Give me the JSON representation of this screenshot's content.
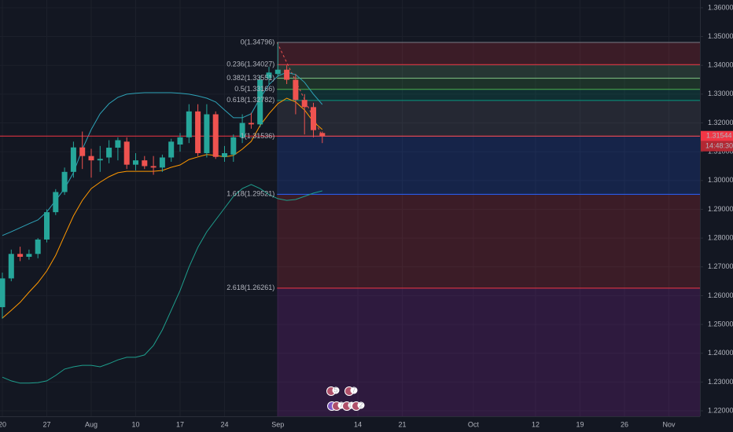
{
  "chart_data": {
    "type": "candlestick",
    "categories": [
      "20",
      null,
      null,
      null,
      null,
      "27",
      null,
      null,
      null,
      null,
      "Aug",
      null,
      null,
      null,
      null,
      "10",
      null,
      null,
      null,
      null,
      "17",
      null,
      null,
      null,
      null,
      "24",
      null,
      null,
      null,
      null,
      null,
      "Sep",
      null,
      null,
      null,
      null,
      null,
      null,
      null,
      null,
      "14",
      null,
      null,
      null,
      null,
      "21",
      null,
      null,
      null,
      null,
      null,
      null,
      null,
      "Oct",
      null,
      null,
      null,
      null,
      null,
      null,
      "12",
      null,
      null,
      null,
      null,
      "19",
      null,
      null,
      null,
      null,
      "26",
      null,
      null,
      null,
      null,
      "Nov"
    ],
    "open": [
      1.256,
      1.266,
      1.2745,
      1.2735,
      1.2745,
      1.2795,
      1.289,
      1.296,
      1.303,
      1.3115,
      1.3085,
      1.307,
      1.308,
      1.3114,
      1.3135,
      1.3055,
      1.307,
      1.305,
      1.3045,
      1.308,
      1.3125,
      1.315,
      1.324,
      1.3095,
      1.323,
      1.3082,
      1.309,
      1.315,
      1.32,
      1.3195,
      1.3355,
      1.337,
      1.3385,
      1.335,
      1.328,
      1.3255,
      1.3165,
      null,
      null,
      null,
      null,
      null,
      null,
      null,
      null,
      null,
      null,
      null,
      null,
      null,
      null,
      null,
      null,
      null,
      null,
      null,
      null,
      null,
      null,
      null,
      null,
      null,
      null,
      null,
      null,
      null,
      null,
      null,
      null,
      null,
      null,
      null,
      null,
      null,
      null,
      null
    ],
    "high": [
      1.268,
      1.276,
      1.277,
      1.276,
      1.28,
      1.29,
      1.297,
      1.3045,
      1.3135,
      1.317,
      1.311,
      1.312,
      1.314,
      1.315,
      1.315,
      1.3095,
      1.3085,
      1.3085,
      1.309,
      1.3145,
      1.3165,
      1.3265,
      1.3265,
      1.3265,
      1.324,
      1.312,
      1.316,
      1.323,
      1.3235,
      1.3365,
      1.3395,
      1.348,
      1.34,
      1.337,
      1.33,
      1.327,
      1.317,
      null,
      null,
      null,
      null,
      null,
      null,
      null,
      null,
      null,
      null,
      null,
      null,
      null,
      null,
      null,
      null,
      null,
      null,
      null,
      null,
      null,
      null,
      null,
      null,
      null,
      null,
      null,
      null,
      null,
      null,
      null,
      null,
      null,
      null,
      null,
      null,
      null,
      null,
      null
    ],
    "low": [
      1.252,
      1.265,
      1.272,
      1.2725,
      1.273,
      1.2785,
      1.288,
      1.295,
      1.301,
      1.304,
      1.301,
      1.303,
      1.306,
      1.307,
      1.304,
      1.3035,
      1.304,
      1.302,
      1.303,
      1.3065,
      1.31,
      1.313,
      1.3085,
      1.308,
      1.3075,
      1.3065,
      1.3065,
      1.313,
      1.318,
      1.3185,
      1.3335,
      1.336,
      1.3335,
      1.323,
      1.316,
      1.315,
      1.313,
      null,
      null,
      null,
      null,
      null,
      null,
      null,
      null,
      null,
      null,
      null,
      null,
      null,
      null,
      null,
      null,
      null,
      null,
      null,
      null,
      null,
      null,
      null,
      null,
      null,
      null,
      null,
      null,
      null,
      null,
      null,
      null,
      null,
      null,
      null,
      null,
      null,
      null,
      null
    ],
    "close": [
      1.266,
      1.2745,
      1.2735,
      1.2745,
      1.2795,
      1.289,
      1.296,
      1.303,
      1.3115,
      1.3085,
      1.307,
      1.3075,
      1.3114,
      1.314,
      1.3055,
      1.307,
      1.305,
      1.3045,
      1.308,
      1.3135,
      1.315,
      1.324,
      1.3095,
      1.323,
      1.3082,
      1.3095,
      1.315,
      1.32,
      1.3195,
      1.335,
      1.3375,
      1.3385,
      1.335,
      1.328,
      1.3255,
      1.3175,
      1.31544,
      null,
      null,
      null,
      null,
      null,
      null,
      null,
      null,
      null,
      null,
      null,
      null,
      null,
      null,
      null,
      null,
      null,
      null,
      null,
      null,
      null,
      null,
      null,
      null,
      null,
      null,
      null,
      null,
      null,
      null,
      null,
      null,
      null,
      null,
      null,
      null,
      null,
      null,
      null
    ],
    "up_color": "#26a69a",
    "down_color": "#ef5350",
    "series": [
      {
        "color": "#2ea3b8",
        "values": [
          1.2809,
          1.2822,
          1.2836,
          1.285,
          1.2863,
          1.2891,
          1.2931,
          1.2972,
          1.3027,
          1.3109,
          1.3177,
          1.3232,
          1.3267,
          1.3289,
          1.33,
          1.3303,
          1.3305,
          1.3305,
          1.3305,
          1.3305,
          1.3303,
          1.33,
          1.3294,
          1.3286,
          1.3273,
          1.3245,
          1.3218,
          1.3218,
          1.3232,
          1.3286,
          1.3333,
          1.3363,
          1.3376,
          1.3368,
          1.3341,
          1.33,
          1.3264,
          null,
          null,
          null,
          null,
          null,
          null,
          null,
          null,
          null,
          null,
          null,
          null,
          null,
          null,
          null,
          null,
          null,
          null,
          null,
          null,
          null,
          null,
          null,
          null,
          null,
          null,
          null,
          null,
          null,
          null,
          null,
          null,
          null,
          null,
          null,
          null,
          null,
          null,
          null
        ]
      },
      {
        "color": "#1e9e8c",
        "values": [
          1.2317,
          1.2304,
          1.2296,
          1.2296,
          1.2298,
          1.2304,
          1.2323,
          1.2345,
          1.2353,
          1.2358,
          1.2358,
          1.2353,
          1.2364,
          1.2377,
          1.2386,
          1.2386,
          1.2394,
          1.2427,
          1.2481,
          1.2549,
          1.2618,
          1.2699,
          1.2768,
          1.2822,
          1.2863,
          1.2904,
          1.2945,
          1.2972,
          1.2986,
          1.2972,
          1.2951,
          1.2937,
          1.2931,
          1.2934,
          1.2945,
          1.2956,
          1.2964,
          null,
          null,
          null,
          null,
          null,
          null,
          null,
          null,
          null,
          null,
          null,
          null,
          null,
          null,
          null,
          null,
          null,
          null,
          null,
          null,
          null,
          null,
          null,
          null,
          null,
          null,
          null,
          null,
          null,
          null,
          null,
          null,
          null,
          null,
          null,
          null,
          null,
          null,
          null
        ]
      },
      {
        "color": "#ff9800",
        "values": [
          1.2522,
          1.2549,
          1.2577,
          1.2612,
          1.2645,
          1.2686,
          1.274,
          1.2809,
          1.2877,
          1.2931,
          1.2972,
          1.2994,
          1.3013,
          1.3027,
          1.3032,
          1.3032,
          1.3032,
          1.3032,
          1.3035,
          1.3046,
          1.3054,
          1.3073,
          1.3082,
          1.309,
          1.3087,
          1.3082,
          1.3087,
          1.3109,
          1.3136,
          1.3191,
          1.3232,
          1.3267,
          1.3286,
          1.3273,
          1.3245,
          1.3204,
          1.3177,
          null,
          null,
          null,
          null,
          null,
          null,
          null,
          null,
          null,
          null,
          null,
          null,
          null,
          null,
          null,
          null,
          null,
          null,
          null,
          null,
          null,
          null,
          null,
          null,
          null,
          null,
          null,
          null,
          null,
          null,
          null,
          null,
          null,
          null,
          null,
          null,
          null,
          null,
          null
        ]
      }
    ],
    "ylim": [
      1.2181,
      1.3627
    ],
    "yticks": [
      {
        "value": 1.22,
        "label": "1.22000"
      },
      {
        "value": 1.23,
        "label": "1.23000"
      },
      {
        "value": 1.24,
        "label": "1.24000"
      },
      {
        "value": 1.25,
        "label": "1.25000"
      },
      {
        "value": 1.26,
        "label": "1.26000"
      },
      {
        "value": 1.27,
        "label": "1.27000"
      },
      {
        "value": 1.28,
        "label": "1.28000"
      },
      {
        "value": 1.29,
        "label": "1.29000"
      },
      {
        "value": 1.3,
        "label": "1.30000"
      },
      {
        "value": 1.31,
        "label": "1.31000"
      },
      {
        "value": 1.32,
        "label": "1.32000"
      },
      {
        "value": 1.33,
        "label": "1.33000"
      },
      {
        "value": 1.34,
        "label": "1.34000"
      },
      {
        "value": 1.35,
        "label": "1.35000"
      },
      {
        "value": 1.36,
        "label": "1.36000"
      }
    ],
    "grid": true,
    "price_line": {
      "value": 1.31544,
      "label": "1.31544",
      "color": "#f23645"
    },
    "countdown": "14:48:30",
    "fibonacci": {
      "levels": [
        {
          "value": 1.34796,
          "label": "0(1.34796)",
          "color": "#787b86"
        },
        {
          "value": 1.34027,
          "label": "0.236(1.34027)",
          "color": "#f23645"
        },
        {
          "value": 1.33551,
          "label": "0.382(1.33551)",
          "color": "#81c784"
        },
        {
          "value": 1.33166,
          "label": "0.5(1.33166)",
          "color": "#4caf50"
        },
        {
          "value": 1.32782,
          "label": "0.618(1.32782)",
          "color": "#089981"
        },
        {
          "value": 1.31536,
          "label": "1(1.31536)",
          "color": "#787b86"
        },
        {
          "value": 1.29521,
          "label": "1.618(1.29521)",
          "color": "#2962ff"
        },
        {
          "value": 1.26261,
          "label": "2.618(1.26261)",
          "color": "#f23645"
        }
      ],
      "extension_color": "#9c27b0"
    },
    "annotations": [
      "5",
      "7",
      "7",
      "11",
      "2"
    ]
  }
}
